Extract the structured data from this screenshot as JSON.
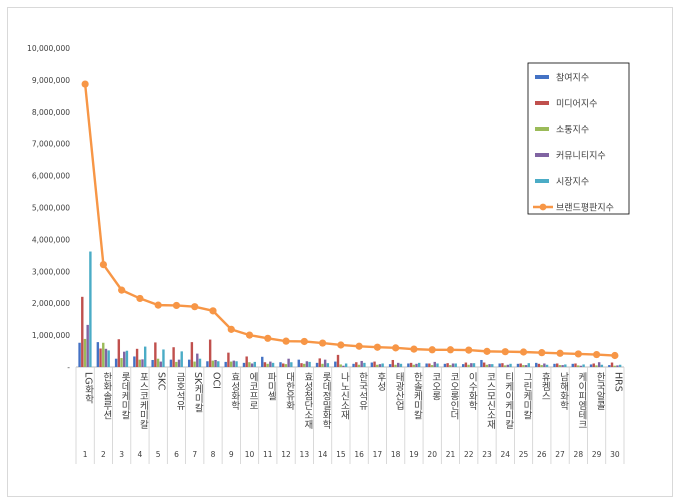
{
  "chart_data": {
    "type": "bar",
    "title": "",
    "xlabel": "",
    "ylabel": "",
    "ylim": [
      0,
      10000000
    ],
    "yticks": [
      0,
      1000000,
      2000000,
      3000000,
      4000000,
      5000000,
      6000000,
      7000000,
      8000000,
      9000000,
      10000000
    ],
    "ytick_labels": [
      "-",
      "1,000,000",
      "2,000,000",
      "3,000,000",
      "4,000,000",
      "5,000,000",
      "6,000,000",
      "7,000,000",
      "8,000,000",
      "9,000,000",
      "10,000,000"
    ],
    "grid": false,
    "legend_position": "top-right",
    "ranks": [
      "1",
      "2",
      "3",
      "4",
      "5",
      "6",
      "7",
      "8",
      "9",
      "10",
      "11",
      "12",
      "13",
      "14",
      "15",
      "16",
      "17",
      "18",
      "19",
      "20",
      "21",
      "22",
      "23",
      "24",
      "25",
      "26",
      "27",
      "28",
      "29",
      "30"
    ],
    "categories": [
      "LG화학",
      "한화솔루션",
      "롯데케미칼",
      "포스코케미칼",
      "SKC",
      "금호석유",
      "SK케미칼",
      "OCI",
      "효성화학",
      "에코프로",
      "파미셀",
      "대한유화",
      "효성첨단소재",
      "롯데정밀화학",
      "나노신소재",
      "한국석유",
      "후성",
      "태광산업",
      "한솔케미칼",
      "코오롱",
      "코오롱인더",
      "이수화학",
      "코스모신소재",
      "티케이케미칼",
      "그린케미칼",
      "휴켐스",
      "남해화학",
      "케이피엠테크",
      "한국알콜",
      "HRS"
    ],
    "series": [
      {
        "name": "참여지수",
        "color": "#4472c4",
        "kind": "bar",
        "values": [
          760000,
          780000,
          260000,
          330000,
          220000,
          230000,
          230000,
          180000,
          160000,
          130000,
          320000,
          150000,
          230000,
          130000,
          170000,
          100000,
          140000,
          90000,
          110000,
          110000,
          100000,
          90000,
          220000,
          110000,
          100000,
          130000,
          100000,
          100000,
          80000,
          60000
        ]
      },
      {
        "name": "미디어지수",
        "color": "#c0504d",
        "kind": "bar",
        "values": [
          2200000,
          580000,
          870000,
          570000,
          770000,
          620000,
          780000,
          860000,
          450000,
          330000,
          150000,
          110000,
          120000,
          270000,
          380000,
          150000,
          170000,
          220000,
          130000,
          110000,
          120000,
          140000,
          140000,
          120000,
          110000,
          100000,
          110000,
          110000,
          110000,
          140000
        ]
      },
      {
        "name": "소통지수",
        "color": "#9bbb59",
        "kind": "bar",
        "values": [
          880000,
          760000,
          280000,
          230000,
          260000,
          160000,
          170000,
          200000,
          170000,
          150000,
          100000,
          90000,
          100000,
          100000,
          80000,
          70000,
          70000,
          70000,
          70000,
          60000,
          60000,
          70000,
          70000,
          50000,
          60000,
          60000,
          60000,
          50000,
          50000,
          40000
        ]
      },
      {
        "name": "커뮤니티지수",
        "color": "#8064a2",
        "kind": "bar",
        "values": [
          1320000,
          570000,
          480000,
          240000,
          170000,
          230000,
          420000,
          220000,
          200000,
          110000,
          170000,
          260000,
          180000,
          230000,
          40000,
          190000,
          90000,
          130000,
          100000,
          160000,
          110000,
          120000,
          90000,
          70000,
          60000,
          110000,
          60000,
          40000,
          150000,
          50000
        ]
      },
      {
        "name": "시장지수",
        "color": "#4bacc6",
        "kind": "bar",
        "values": [
          3620000,
          520000,
          510000,
          640000,
          550000,
          490000,
          260000,
          180000,
          180000,
          160000,
          130000,
          150000,
          160000,
          120000,
          110000,
          130000,
          110000,
          100000,
          130000,
          110000,
          110000,
          120000,
          90000,
          100000,
          120000,
          70000,
          80000,
          80000,
          70000,
          70000
        ]
      },
      {
        "name": "브랜드평판지수",
        "color": "#f79646",
        "kind": "line",
        "values": [
          8870000,
          3210000,
          2410000,
          2150000,
          1940000,
          1930000,
          1890000,
          1760000,
          1180000,
          1000000,
          900000,
          810000,
          800000,
          750000,
          690000,
          650000,
          620000,
          600000,
          560000,
          540000,
          540000,
          530000,
          490000,
          480000,
          470000,
          450000,
          430000,
          410000,
          390000,
          360000
        ]
      }
    ]
  }
}
